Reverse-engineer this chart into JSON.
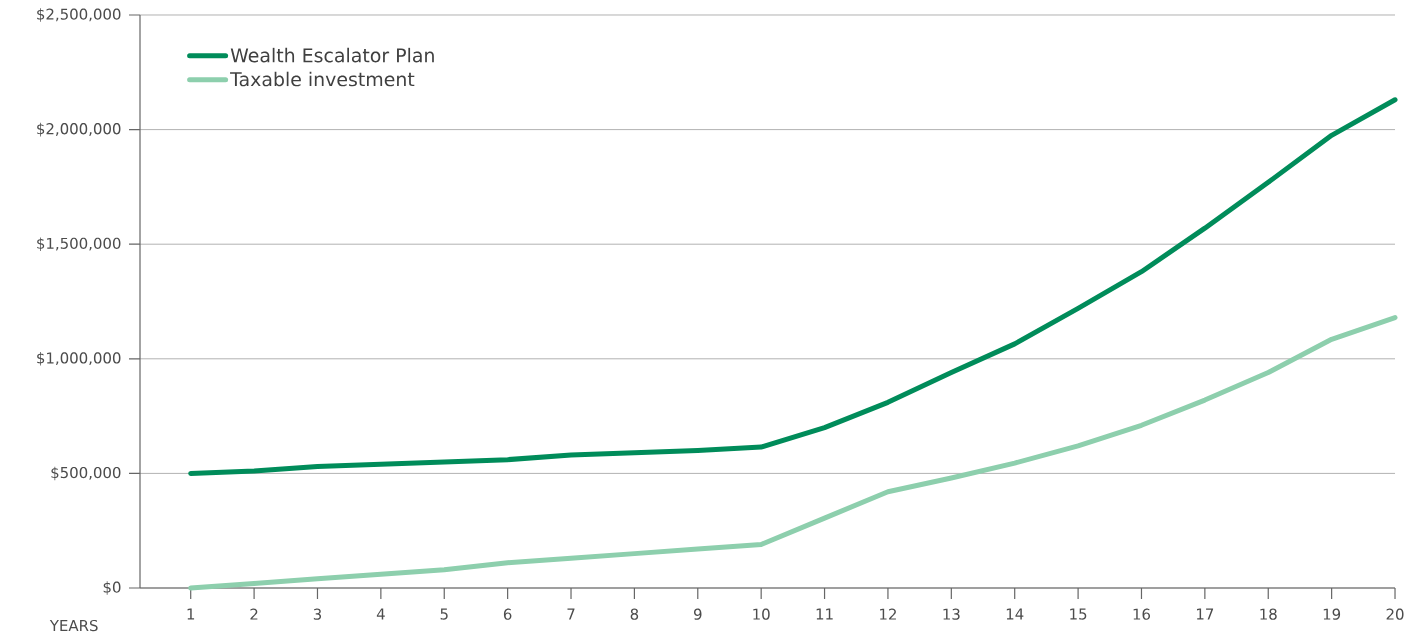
{
  "chart_data": {
    "type": "line",
    "xlabel": "YEARS",
    "x": [
      1,
      2,
      3,
      4,
      5,
      6,
      7,
      8,
      9,
      10,
      11,
      12,
      13,
      14,
      15,
      16,
      17,
      18,
      19,
      20
    ],
    "xlim": [
      0.2,
      20
    ],
    "xticks": [
      1,
      2,
      3,
      4,
      5,
      6,
      7,
      8,
      9,
      10,
      11,
      12,
      13,
      14,
      15,
      16,
      17,
      18,
      19,
      20
    ],
    "ylim": [
      0,
      2500000
    ],
    "yticks": [
      {
        "value": 0,
        "label": "$0"
      },
      {
        "value": 500000,
        "label": "$500,000"
      },
      {
        "value": 1000000,
        "label": "$1,000,000"
      },
      {
        "value": 1500000,
        "label": "$1,500,000"
      },
      {
        "value": 2000000,
        "label": "$2,000,000"
      },
      {
        "value": 2500000,
        "label": "$2,500,000"
      }
    ],
    "grid": "y",
    "legend": "top left",
    "series": [
      {
        "name": "Wealth Escalator Plan",
        "color": "#008c5a",
        "values": [
          500000,
          510000,
          530000,
          540000,
          550000,
          560000,
          580000,
          590000,
          600000,
          615000,
          700000,
          810000,
          940000,
          1065000,
          1220000,
          1380000,
          1570000,
          1770000,
          1975000,
          2130000
        ]
      },
      {
        "name": "Taxable investment",
        "color": "#8dcfad",
        "values": [
          0,
          20000,
          40000,
          60000,
          80000,
          110000,
          130000,
          150000,
          170000,
          190000,
          305000,
          420000,
          480000,
          545000,
          620000,
          710000,
          820000,
          940000,
          1085000,
          1180000
        ]
      }
    ]
  }
}
